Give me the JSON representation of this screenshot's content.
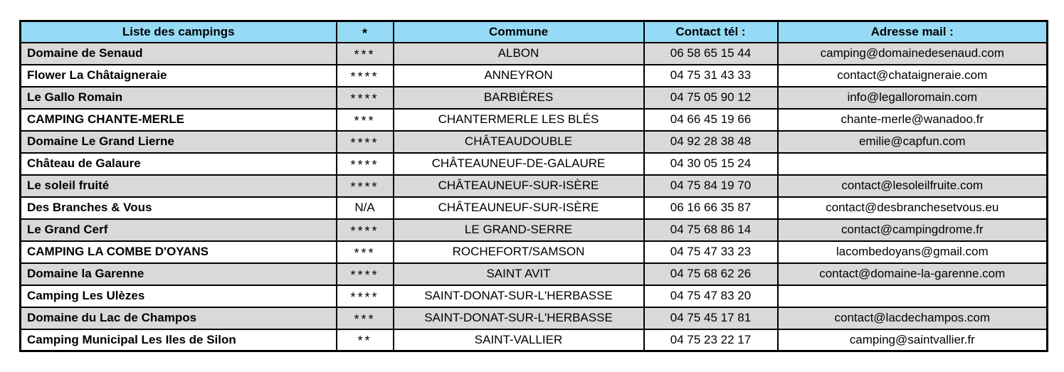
{
  "colors": {
    "header_bg": "#96DBF5",
    "row_alt_bg": "#D9D9D9",
    "border": "#000000"
  },
  "table": {
    "headers": [
      {
        "label": "Liste des campings"
      },
      {
        "label": "*"
      },
      {
        "label": "Commune"
      },
      {
        "label": "Contact tél :"
      },
      {
        "label": "Adresse mail :"
      }
    ],
    "rows": [
      {
        "name": "Domaine de Senaud",
        "stars": "***",
        "commune": "ALBON",
        "phone": "06 58 65 15 44",
        "email": "camping@domainedesenaud.com"
      },
      {
        "name": "Flower La Châtaigneraie",
        "stars": "****",
        "commune": "ANNEYRON",
        "phone": "04 75 31 43 33",
        "email": "contact@chataigneraie.com"
      },
      {
        "name": "Le Gallo Romain",
        "stars": "****",
        "commune": "BARBIÈRES",
        "phone": "04 75 05 90 12",
        "email": "info@legalloromain.com"
      },
      {
        "name": "CAMPING CHANTE-MERLE",
        "stars": "***",
        "commune": "CHANTERMERLE LES BLÉS",
        "phone": "04 66 45 19 66",
        "email": "chante-merle@wanadoo.fr"
      },
      {
        "name": "Domaine Le Grand Lierne",
        "stars": "****",
        "commune": "CHÂTEAUDOUBLE",
        "phone": "04 92 28 38 48",
        "email": "emilie@capfun.com"
      },
      {
        "name": "Château de Galaure",
        "stars": "****",
        "commune": "CHÂTEAUNEUF-DE-GALAURE",
        "phone": "04 30 05 15 24",
        "email": ""
      },
      {
        "name": "Le soleil fruité",
        "stars": "****",
        "commune": "CHÂTEAUNEUF-SUR-ISÈRE",
        "phone": "04 75 84 19 70",
        "email": "contact@lesoleilfruite.com"
      },
      {
        "name": "Des Branches & Vous",
        "stars": "N/A",
        "commune": "CHÂTEAUNEUF-SUR-ISÈRE",
        "phone": "06 16 66 35 87",
        "email": "contact@desbranchesetvous.eu"
      },
      {
        "name": "Le Grand Cerf",
        "stars": "****",
        "commune": "LE GRAND-SERRE",
        "phone": "04 75 68 86 14",
        "email": "contact@campingdrome.fr"
      },
      {
        "name": "CAMPING LA COMBE D'OYANS",
        "stars": "***",
        "commune": "ROCHEFORT/SAMSON",
        "phone": "04 75 47 33 23",
        "email": "lacombedoyans@gmail.com"
      },
      {
        "name": "Domaine la Garenne",
        "stars": "****",
        "commune": "SAINT AVIT",
        "phone": "04 75 68 62 26",
        "email": "contact@domaine-la-garenne.com"
      },
      {
        "name": "Camping Les Ulèzes",
        "stars": "****",
        "commune": "SAINT-DONAT-SUR-L'HERBASSE",
        "phone": "04 75 47 83 20",
        "email": ""
      },
      {
        "name": "Domaine du Lac de Champos",
        "stars": "***",
        "commune": "SAINT-DONAT-SUR-L'HERBASSE",
        "phone": "04 75 45 17 81",
        "email": "contact@lacdechampos.com"
      },
      {
        "name": "Camping Municipal Les Iles de Silon",
        "stars": "**",
        "commune": "SAINT-VALLIER",
        "phone": "04 75 23 22 17",
        "email": "camping@saintvallier.fr"
      }
    ]
  }
}
